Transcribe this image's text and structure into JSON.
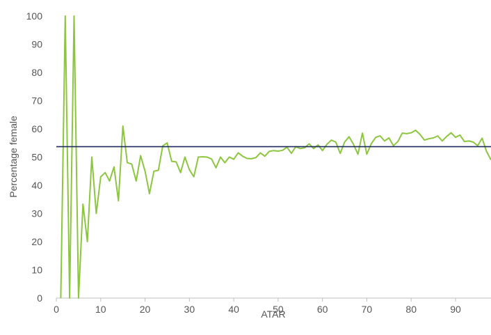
{
  "chart_data": {
    "type": "line",
    "xlabel": "ATAR",
    "ylabel": "Percentage female",
    "xlim": [
      0,
      98
    ],
    "ylim": [
      0,
      100
    ],
    "x_ticks": [
      "0",
      "10",
      "20",
      "30",
      "40",
      "50",
      "60",
      "70",
      "80",
      "90"
    ],
    "y_ticks": [
      "0",
      "10",
      "20",
      "30",
      "40",
      "50",
      "60",
      "70",
      "80",
      "90",
      "100"
    ],
    "grid": false,
    "colors": {
      "series": "#8cc63f",
      "reference": "#1f2a5c",
      "axis": "#bfbfbf",
      "text": "#555555"
    },
    "series": [
      {
        "x": [
          1,
          2,
          3,
          4,
          5,
          6,
          7,
          8,
          9,
          10,
          11,
          12,
          13,
          14,
          15,
          16,
          17,
          18,
          19,
          20,
          21,
          22,
          23,
          24,
          25,
          26,
          27,
          28,
          29,
          30,
          31,
          32,
          33,
          34,
          35,
          36,
          37,
          38,
          39,
          40,
          41,
          42,
          43,
          44,
          45,
          46,
          47,
          48,
          49,
          50,
          51,
          52,
          53,
          54,
          55,
          56,
          57,
          58,
          59,
          60,
          61,
          62,
          63,
          64,
          65,
          66,
          67,
          68,
          69,
          70,
          71,
          72,
          73,
          74,
          75,
          76,
          77,
          78,
          79,
          80,
          81,
          82,
          83,
          84,
          85,
          86,
          87,
          88,
          89,
          90,
          91,
          92,
          93,
          94,
          95,
          96,
          97,
          98
        ],
        "values": [
          0,
          100,
          0,
          100,
          0,
          33.3,
          20,
          50,
          30,
          43,
          44.5,
          41.5,
          46.5,
          34.5,
          61,
          48,
          47.5,
          41.5,
          50.5,
          45,
          37,
          45,
          45.3,
          54,
          55,
          48.5,
          48.3,
          44.5,
          50,
          45.5,
          43,
          50,
          50.1,
          50,
          49.3,
          46.2,
          50,
          48,
          50,
          49.2,
          51.5,
          50.3,
          49.5,
          49.4,
          49.8,
          51.5,
          50.3,
          52,
          52.3,
          52.1,
          52.4,
          53.5,
          51.3,
          53.7,
          53,
          53.3,
          54.7,
          53,
          54.3,
          52.3,
          54.5,
          56,
          55.3,
          51.3,
          55.3,
          57.2,
          54.5,
          51,
          58.5,
          51,
          54.7,
          57,
          57.5,
          55.7,
          56.8,
          54,
          55.5,
          58.5,
          58.3,
          58.6,
          59.5,
          58,
          56,
          56.5,
          56.8,
          57.5,
          55.7,
          57.3,
          58.6,
          57,
          57.8,
          55.5,
          55.7,
          55.3,
          54,
          56.7,
          52,
          49
        ]
      }
    ],
    "reference_line": {
      "y": 53.7
    }
  }
}
